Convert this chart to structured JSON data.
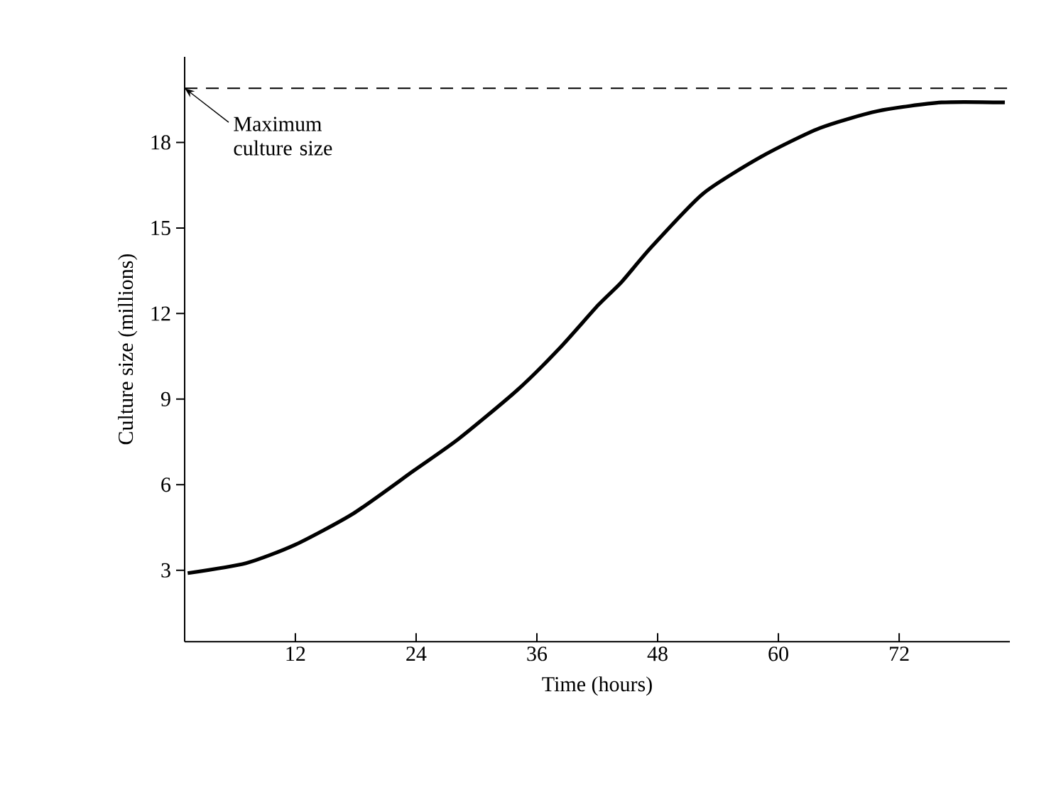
{
  "chart_data": {
    "type": "line",
    "xlabel": "Time (hours)",
    "ylabel": "Culture size (millions)",
    "x": [
      1.3,
      7.1,
      12,
      17.8,
      23.8,
      28.2,
      34.0,
      38.3,
      42.1,
      44.4,
      47.3,
      52.5,
      58.3,
      64.1,
      69.9,
      76.2,
      82.5
    ],
    "values": [
      2.9,
      3.25,
      3.9,
      5.0,
      6.5,
      7.6,
      9.3,
      10.8,
      12.3,
      13.1,
      14.3,
      16.2,
      17.5,
      18.5,
      19.1,
      19.4,
      19.4
    ],
    "color": "#000000",
    "line_style": "solid",
    "marker": "none",
    "xlim": [
      1,
      83
    ],
    "ylim": [
      0.5,
      21
    ],
    "xticks": [
      12,
      24,
      36,
      48,
      60,
      72
    ],
    "yticks": [
      3,
      6,
      9,
      12,
      15,
      18
    ],
    "ref_lines": [
      {
        "axis": "y",
        "value": 19.9,
        "line_style": "dashed",
        "color": "#000000"
      }
    ],
    "annotations": [
      {
        "text": "Maximum culture size",
        "x": 1,
        "y": 19.9
      }
    ]
  }
}
